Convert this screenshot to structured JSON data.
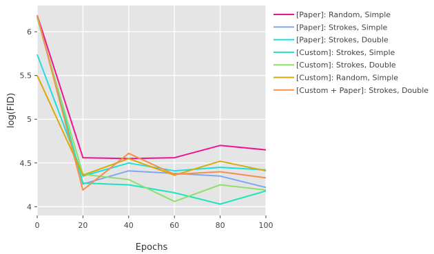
{
  "chart_data": {
    "type": "line",
    "xlabel": "Epochs",
    "ylabel": "log(FID)",
    "xlim": [
      0,
      100
    ],
    "ylim": [
      3.9,
      6.3
    ],
    "x": [
      0,
      20,
      40,
      60,
      80,
      100
    ],
    "xticks": [
      "0",
      "20",
      "40",
      "60",
      "80",
      "100"
    ],
    "yticks": [
      {
        "value": 4,
        "label": "4"
      },
      {
        "value": 4.5,
        "label": "4.5"
      },
      {
        "value": 5,
        "label": "5"
      },
      {
        "value": 5.5,
        "label": "5.5"
      },
      {
        "value": 6,
        "label": "6"
      }
    ],
    "grid": true,
    "legend_position": "top-right outside",
    "background": "#e5e5e5",
    "series": [
      {
        "name": "[Paper]: Random, Simple",
        "color": "#f0128f",
        "values": [
          6.19,
          4.56,
          4.55,
          4.56,
          4.7,
          4.65
        ]
      },
      {
        "name": "[Paper]: Strokes, Simple",
        "color": "#7fa7f2",
        "values": [
          6.18,
          4.26,
          4.41,
          4.38,
          4.35,
          4.22
        ]
      },
      {
        "name": "[Paper]: Strokes, Double",
        "color": "#1ddde0",
        "values": [
          5.74,
          4.35,
          4.5,
          4.41,
          4.45,
          4.42
        ]
      },
      {
        "name": "[Custom]: Strokes, Simple",
        "color": "#1ce5bd",
        "values": [
          6.17,
          4.27,
          4.25,
          4.16,
          4.03,
          4.18
        ]
      },
      {
        "name": "[Custom]: Strokes, Double",
        "color": "#8edf6e",
        "values": [
          6.16,
          4.37,
          4.31,
          4.06,
          4.25,
          4.19
        ]
      },
      {
        "name": "[Custom]: Random, Simple",
        "color": "#d9a90b",
        "values": [
          5.5,
          4.36,
          4.55,
          4.36,
          4.52,
          4.41
        ]
      },
      {
        "name": "[Custom + Paper]: Strokes, Double",
        "color": "#f5904a",
        "values": [
          6.19,
          4.19,
          4.61,
          4.37,
          4.4,
          4.33
        ]
      }
    ]
  }
}
